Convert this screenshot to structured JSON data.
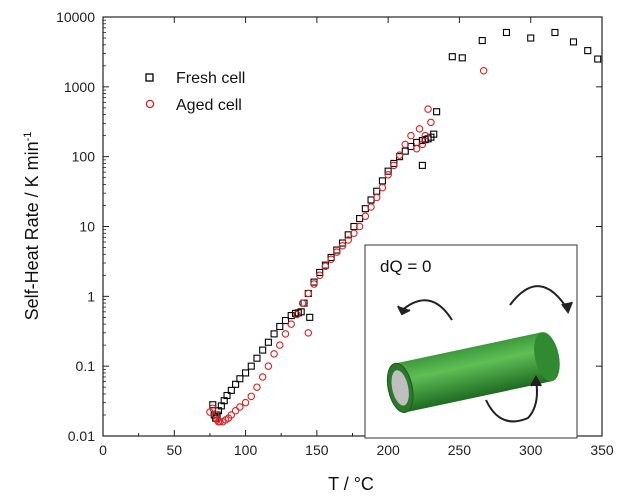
{
  "chart_data": {
    "type": "scatter",
    "xlabel": "T / °C",
    "ylabel": "Self-Heat Rate / K min",
    "ylabel_superscript": "-1",
    "xlim": [
      0,
      350
    ],
    "ylim": [
      0.01,
      10000
    ],
    "y_scale": "log",
    "x_ticks": [
      0,
      50,
      100,
      150,
      200,
      250,
      300,
      350
    ],
    "y_ticks": [
      {
        "value": 0.01,
        "label": "0.01"
      },
      {
        "value": 0.1,
        "label": "0.1"
      },
      {
        "value": 1,
        "label": "1"
      },
      {
        "value": 10,
        "label": "10"
      },
      {
        "value": 100,
        "label": "100"
      },
      {
        "value": 1000,
        "label": "1000"
      },
      {
        "value": 10000,
        "label": "10000"
      }
    ],
    "grid": false,
    "legend_position": "top-left",
    "series": [
      {
        "name": "Fresh cell",
        "marker": "open-square",
        "color": "#000000",
        "x": [
          77,
          78,
          79,
          80,
          81,
          83,
          85,
          87,
          90,
          93,
          96,
          100,
          104,
          108,
          112,
          116,
          120,
          124,
          128,
          132,
          135,
          137,
          139,
          141,
          144,
          148,
          152,
          156,
          160,
          164,
          168,
          172,
          176,
          180,
          184,
          188,
          192,
          196,
          200,
          204,
          208,
          212,
          216,
          220,
          224,
          226,
          228,
          230,
          232,
          234,
          145,
          224,
          245,
          252,
          266,
          283,
          300,
          317,
          330,
          340,
          347
        ],
        "y": [
          0.028,
          0.02,
          0.018,
          0.02,
          0.023,
          0.027,
          0.032,
          0.038,
          0.045,
          0.055,
          0.066,
          0.08,
          0.1,
          0.13,
          0.17,
          0.22,
          0.29,
          0.37,
          0.45,
          0.53,
          0.57,
          0.58,
          0.6,
          0.8,
          1.1,
          1.6,
          2.2,
          2.8,
          3.6,
          4.6,
          5.8,
          7.6,
          10,
          13,
          18,
          24,
          32,
          45,
          62,
          80,
          100,
          120,
          140,
          160,
          170,
          175,
          180,
          190,
          210,
          440,
          0.5,
          75,
          2700,
          2600,
          4600,
          6000,
          5000,
          6000,
          4400,
          3300,
          2500
        ]
      },
      {
        "name": "Aged cell",
        "marker": "open-circle",
        "color": "#e02020",
        "x": [
          75,
          77,
          79,
          80,
          81,
          82,
          84,
          86,
          88,
          90,
          93,
          96,
          100,
          104,
          108,
          112,
          116,
          120,
          124,
          128,
          132,
          136,
          140,
          144,
          148,
          152,
          156,
          160,
          164,
          168,
          172,
          176,
          180,
          184,
          188,
          192,
          196,
          200,
          204,
          208,
          212,
          216,
          220,
          222,
          224,
          226,
          228,
          230,
          144,
          267
        ],
        "y": [
          0.022,
          0.025,
          0.02,
          0.017,
          0.016,
          0.016,
          0.016,
          0.017,
          0.018,
          0.02,
          0.023,
          0.026,
          0.03,
          0.037,
          0.05,
          0.07,
          0.1,
          0.15,
          0.2,
          0.29,
          0.4,
          0.55,
          0.8,
          1.1,
          1.5,
          2,
          2.7,
          3.4,
          4.3,
          5.3,
          6.4,
          8,
          10,
          14,
          19,
          26,
          36,
          55,
          75,
          105,
          150,
          200,
          130,
          250,
          150,
          200,
          480,
          310,
          0.3,
          1700
        ]
      }
    ],
    "annotations": [
      "dQ = 0"
    ]
  }
}
